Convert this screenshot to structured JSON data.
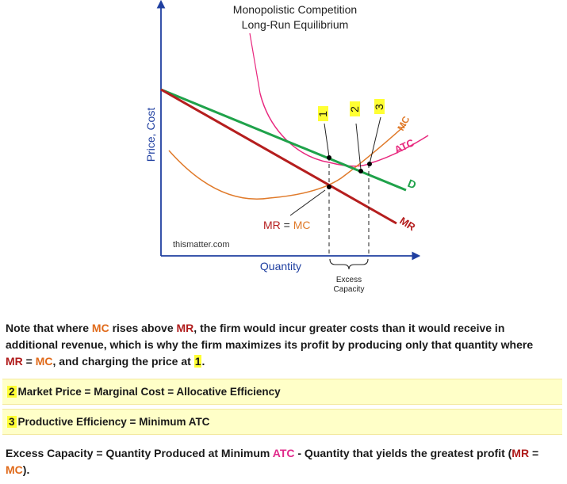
{
  "diagram": {
    "title_line1": "Monopolistic Competition",
    "title_line2": "Long-Run Equilibrium",
    "y_axis_label": "Price, Cost",
    "x_axis_label": "Quantity",
    "watermark": "thismatter.com",
    "label_mr_eq_mc": {
      "mr": "MR",
      "eq": " = ",
      "mc": "MC"
    },
    "curve_labels": {
      "mc": "MC",
      "atc": "ATC",
      "d": "D",
      "mr": "MR"
    },
    "point_markers": [
      "1",
      "2",
      "3"
    ],
    "excess_capacity_line1": "Excess",
    "excess_capacity_line2": "Capacity",
    "colors": {
      "mc": "#e07a2a",
      "atc": "#e8287e",
      "d": "#1fa24a",
      "mr": "#b51e1e",
      "axis": "#1f3fa0",
      "highlight": "#ffff33"
    }
  },
  "note": {
    "p1": "Note that where ",
    "mc1": "MC",
    "p2": " rises above ",
    "mr1": "MR",
    "p3": ", the firm would incur greater costs than it would receive in additional revenue, which is why the firm maximizes its profit by producing only that quantity where ",
    "mr2": "MR",
    "eq": " = ",
    "mc2": "MC",
    "p4": ", and charging the price at ",
    "one": "1",
    "end": "."
  },
  "box2": {
    "num": "2",
    "text": "Market Price = Marginal Cost = Allocative Efficiency"
  },
  "box3": {
    "num": "3",
    "text": "Productive Efficiency = Minimum ATC"
  },
  "excess": {
    "p1": "Excess Capacity = Quantity Produced at Minimum ",
    "atc": "ATC",
    "p2": " - Quantity that yields the greatest profit (",
    "mr": "MR",
    "eq": " = ",
    "mc": "MC",
    "p3": ")."
  }
}
